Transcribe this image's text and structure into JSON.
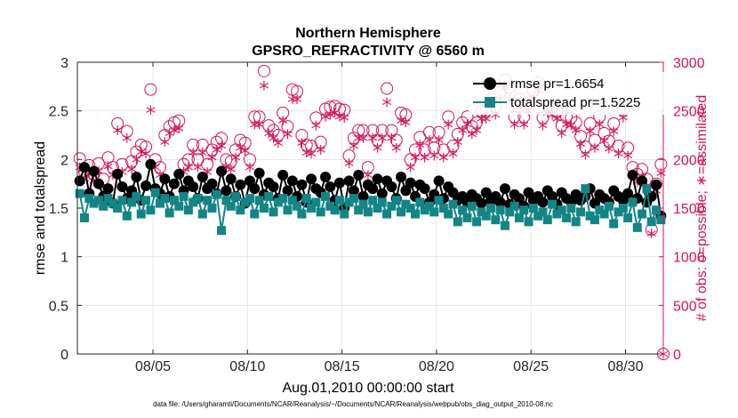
{
  "chart_data": {
    "type": "line",
    "title": "Northern Hemisphere",
    "subtitle": "GPSRO_REFRACTIVITY @ 6560 m",
    "xlabel": "Aug.01,2010 00:00:00 start",
    "ylabel_left": "rmse and totalspread",
    "ylabel_right": "# of obs: o=possible; ∗=assimilated",
    "xlim": [
      1,
      32
    ],
    "ylim_left": [
      0,
      3
    ],
    "ylim_right": [
      0,
      3000
    ],
    "x_ticks": [
      5,
      10,
      15,
      20,
      25,
      30
    ],
    "x_tick_labels": [
      "08/05",
      "08/10",
      "08/15",
      "08/20",
      "08/25",
      "08/30"
    ],
    "y_ticks_left": [
      0,
      0.5,
      1,
      1.5,
      2,
      2.5,
      3
    ],
    "y_tick_labels_left": [
      "0",
      "0.5",
      "1",
      "1.5",
      "2",
      "2.5",
      "3"
    ],
    "y_ticks_right": [
      0,
      500,
      1000,
      1500,
      2000,
      2500,
      3000
    ],
    "y_tick_labels_right": [
      "0",
      "500",
      "1000",
      "1500",
      "2000",
      "2500",
      "3000"
    ],
    "grid": true,
    "legend_position": "top-right",
    "footnote": "data file: /Users/gharamti/Documents/NCAR/Reanalysis/~/Documents/NCAR/Reanalysis/webpub/obs_diag_output_2010-08.nc",
    "colors": {
      "rmse": "#000000",
      "totalspread": "#138585",
      "obs": "#d4145a",
      "grid": "#e6e6e6",
      "frame": "#262626"
    },
    "series": [
      {
        "name": "rmse pr=1.6654",
        "axis": "left",
        "x": [
          1.125,
          1.375,
          1.625,
          1.875,
          2.125,
          2.375,
          2.625,
          2.875,
          3.125,
          3.375,
          3.625,
          3.875,
          4.125,
          4.375,
          4.625,
          4.875,
          5.125,
          5.375,
          5.625,
          5.875,
          6.125,
          6.375,
          6.625,
          6.875,
          7.125,
          7.375,
          7.625,
          7.875,
          8.125,
          8.375,
          8.625,
          8.875,
          9.125,
          9.375,
          9.625,
          9.875,
          10.125,
          10.375,
          10.625,
          10.875,
          11.125,
          11.375,
          11.625,
          11.875,
          12.125,
          12.375,
          12.625,
          12.875,
          13.125,
          13.375,
          13.625,
          13.875,
          14.125,
          14.375,
          14.625,
          14.875,
          15.125,
          15.375,
          15.625,
          15.875,
          16.125,
          16.375,
          16.625,
          16.875,
          17.125,
          17.375,
          17.625,
          17.875,
          18.125,
          18.375,
          18.625,
          18.875,
          19.125,
          19.375,
          19.625,
          19.875,
          20.125,
          20.375,
          20.625,
          20.875,
          21.125,
          21.375,
          21.625,
          21.875,
          22.125,
          22.375,
          22.625,
          22.875,
          23.125,
          23.375,
          23.625,
          23.875,
          24.125,
          24.375,
          24.625,
          24.875,
          25.125,
          25.375,
          25.625,
          25.875,
          26.125,
          26.375,
          26.625,
          26.875,
          27.125,
          27.375,
          27.625,
          27.875,
          28.125,
          28.375,
          28.625,
          28.875,
          29.125,
          29.375,
          29.625,
          29.875,
          30.125,
          30.375,
          30.625,
          30.875,
          31.125,
          31.375,
          31.625,
          31.875
        ],
        "values": [
          1.78,
          1.92,
          1.65,
          1.88,
          1.75,
          1.62,
          1.7,
          1.55,
          1.85,
          1.72,
          1.6,
          1.68,
          1.82,
          1.58,
          1.73,
          1.95,
          1.7,
          1.65,
          1.8,
          1.62,
          1.75,
          1.85,
          1.68,
          1.78,
          1.72,
          1.6,
          1.82,
          1.7,
          1.75,
          1.65,
          1.88,
          1.68,
          1.8,
          1.62,
          1.74,
          1.55,
          1.78,
          1.7,
          1.86,
          1.64,
          1.76,
          1.72,
          1.6,
          1.84,
          1.68,
          1.78,
          1.62,
          1.74,
          1.56,
          1.8,
          1.7,
          1.66,
          1.82,
          1.72,
          1.58,
          1.76,
          1.5,
          1.78,
          1.68,
          1.84,
          1.62,
          1.74,
          1.7,
          1.8,
          1.65,
          1.78,
          1.72,
          1.6,
          1.82,
          1.68,
          1.76,
          1.62,
          1.74,
          1.7,
          1.56,
          1.64,
          1.78,
          1.6,
          1.72,
          1.66,
          1.58,
          1.62,
          1.56,
          1.64,
          1.6,
          1.55,
          1.66,
          1.58,
          1.62,
          1.56,
          1.7,
          1.54,
          1.64,
          1.6,
          1.52,
          1.66,
          1.58,
          1.62,
          1.56,
          1.68,
          1.62,
          1.54,
          1.66,
          1.6,
          1.56,
          1.64,
          1.58,
          1.62,
          1.7,
          1.55,
          1.64,
          1.6,
          1.56,
          1.68,
          1.62,
          1.58,
          1.65,
          1.84,
          1.6,
          1.78,
          1.56,
          1.62,
          1.74,
          1.42
        ]
      },
      {
        "name": "totalspread pr=1.5225",
        "axis": "left",
        "x": [
          1.125,
          1.375,
          1.625,
          1.875,
          2.125,
          2.375,
          2.625,
          2.875,
          3.125,
          3.375,
          3.625,
          3.875,
          4.125,
          4.375,
          4.625,
          4.875,
          5.125,
          5.375,
          5.625,
          5.875,
          6.125,
          6.375,
          6.625,
          6.875,
          7.125,
          7.375,
          7.625,
          7.875,
          8.125,
          8.375,
          8.625,
          8.875,
          9.125,
          9.375,
          9.625,
          9.875,
          10.125,
          10.375,
          10.625,
          10.875,
          11.125,
          11.375,
          11.625,
          11.875,
          12.125,
          12.375,
          12.625,
          12.875,
          13.125,
          13.375,
          13.625,
          13.875,
          14.125,
          14.375,
          14.625,
          14.875,
          15.125,
          15.375,
          15.625,
          15.875,
          16.125,
          16.375,
          16.625,
          16.875,
          17.125,
          17.375,
          17.625,
          17.875,
          18.125,
          18.375,
          18.625,
          18.875,
          19.125,
          19.375,
          19.625,
          19.875,
          20.125,
          20.375,
          20.625,
          20.875,
          21.125,
          21.375,
          21.625,
          21.875,
          22.125,
          22.375,
          22.625,
          22.875,
          23.125,
          23.375,
          23.625,
          23.875,
          24.125,
          24.375,
          24.625,
          24.875,
          25.125,
          25.375,
          25.625,
          25.875,
          26.125,
          26.375,
          26.625,
          26.875,
          27.125,
          27.375,
          27.625,
          27.875,
          28.125,
          28.375,
          28.625,
          28.875,
          29.125,
          29.375,
          29.625,
          29.875,
          30.125,
          30.375,
          30.625,
          30.875,
          31.125,
          31.375,
          31.625,
          31.875
        ],
        "values": [
          1.65,
          1.4,
          1.6,
          1.55,
          1.58,
          1.52,
          1.6,
          1.55,
          1.5,
          1.58,
          1.42,
          1.56,
          1.62,
          1.44,
          1.58,
          1.48,
          1.66,
          1.55,
          1.6,
          1.45,
          1.58,
          1.52,
          1.62,
          1.48,
          1.56,
          1.6,
          1.44,
          1.58,
          1.5,
          1.64,
          1.27,
          1.58,
          1.52,
          1.62,
          1.48,
          1.56,
          1.6,
          1.44,
          1.58,
          1.5,
          1.62,
          1.46,
          1.56,
          1.6,
          1.48,
          1.58,
          1.52,
          1.44,
          1.6,
          1.5,
          1.56,
          1.46,
          1.62,
          1.52,
          1.48,
          1.58,
          1.44,
          1.56,
          1.6,
          1.48,
          1.54,
          1.46,
          1.58,
          1.5,
          1.56,
          1.44,
          1.52,
          1.58,
          1.46,
          1.54,
          1.5,
          1.44,
          1.56,
          1.48,
          1.52,
          1.46,
          1.58,
          1.5,
          1.44,
          1.54,
          1.36,
          1.48,
          1.4,
          1.52,
          1.36,
          1.46,
          1.42,
          1.5,
          1.38,
          1.48,
          1.32,
          1.46,
          1.52,
          1.4,
          1.48,
          1.36,
          1.5,
          1.42,
          1.46,
          1.38,
          1.54,
          1.44,
          1.48,
          1.4,
          1.5,
          1.36,
          1.46,
          1.7,
          1.42,
          1.38,
          1.48,
          1.44,
          1.52,
          1.34,
          1.46,
          1.5,
          1.4,
          1.56,
          1.3,
          1.44,
          1.7,
          1.36,
          1.48,
          1.38
        ]
      },
      {
        "name": "possible",
        "axis": "right",
        "marker": "circle",
        "x": [
          1.125,
          1.375,
          1.625,
          1.875,
          2.125,
          2.375,
          2.625,
          2.875,
          3.125,
          3.375,
          3.625,
          3.875,
          4.125,
          4.375,
          4.625,
          4.875,
          5.125,
          5.375,
          5.625,
          5.875,
          6.125,
          6.375,
          6.625,
          6.875,
          7.125,
          7.375,
          7.625,
          7.875,
          8.125,
          8.375,
          8.625,
          8.875,
          9.125,
          9.375,
          9.625,
          9.875,
          10.125,
          10.375,
          10.625,
          10.875,
          11.125,
          11.375,
          11.625,
          11.875,
          12.125,
          12.375,
          12.625,
          12.875,
          13.125,
          13.375,
          13.625,
          13.875,
          14.125,
          14.375,
          14.625,
          14.875,
          15.125,
          15.375,
          15.625,
          15.875,
          16.125,
          16.375,
          16.625,
          16.875,
          17.125,
          17.375,
          17.625,
          17.875,
          18.125,
          18.375,
          18.625,
          18.875,
          19.125,
          19.375,
          19.625,
          19.875,
          20.125,
          20.375,
          20.625,
          20.875,
          21.125,
          21.375,
          21.625,
          21.875,
          22.125,
          22.375,
          22.625,
          22.875,
          23.125,
          23.375,
          23.625,
          23.875,
          24.125,
          24.375,
          24.625,
          24.875,
          25.125,
          25.375,
          25.625,
          25.875,
          26.125,
          26.375,
          26.625,
          26.875,
          27.125,
          27.375,
          27.625,
          27.875,
          28.125,
          28.375,
          28.625,
          28.875,
          29.125,
          29.375,
          29.625,
          29.875,
          30.125,
          30.375,
          30.625,
          30.875,
          31.125,
          31.375,
          31.625,
          31.875
        ],
        "values": [
          2010,
          1880,
          1940,
          1850,
          1960,
          1800,
          2020,
          1920,
          2370,
          1950,
          2290,
          1980,
          2080,
          2150,
          2130,
          2720,
          2000,
          1920,
          2250,
          2340,
          2380,
          2400,
          1950,
          2000,
          2150,
          2000,
          2150,
          1950,
          2100,
          2180,
          2220,
          2000,
          1980,
          2100,
          2200,
          2170,
          2000,
          2440,
          2440,
          2910,
          2350,
          2300,
          2250,
          2480,
          2340,
          2720,
          2700,
          2250,
          2150,
          2140,
          2430,
          2180,
          2520,
          2540,
          2550,
          2520,
          2510,
          2040,
          2220,
          2300,
          2300,
          1920,
          2300,
          2200,
          2300,
          2730,
          2300,
          2200,
          2480,
          2460,
          2000,
          2100,
          2230,
          2100,
          2280,
          2120,
          2280,
          2100,
          2440,
          2140,
          2260,
          2380,
          2440,
          2340,
          2380,
          2500,
          2500,
          2620,
          2540,
          2690,
          2820,
          2740,
          2440,
          2620,
          2440,
          2580,
          2710,
          2790,
          2430,
          2560,
          2540,
          2500,
          2350,
          2440,
          2430,
          2380,
          2240,
          2130,
          2370,
          2200,
          2440,
          2270,
          2190,
          2370,
          2140,
          2510,
          2120,
          1920,
          1850,
          1900,
          1800,
          1280,
          1750,
          1950
        ]
      },
      {
        "name": "assimilated",
        "axis": "right",
        "marker": "asterisk",
        "x": [
          1.125,
          1.375,
          1.625,
          1.875,
          2.125,
          2.375,
          2.625,
          2.875,
          3.125,
          3.375,
          3.625,
          3.875,
          4.125,
          4.375,
          4.625,
          4.875,
          5.125,
          5.375,
          5.625,
          5.875,
          6.125,
          6.375,
          6.625,
          6.875,
          7.125,
          7.375,
          7.625,
          7.875,
          8.125,
          8.375,
          8.625,
          8.875,
          9.125,
          9.375,
          9.625,
          9.875,
          10.125,
          10.375,
          10.625,
          10.875,
          11.125,
          11.375,
          11.625,
          11.875,
          12.125,
          12.375,
          12.625,
          12.875,
          13.125,
          13.375,
          13.625,
          13.875,
          14.125,
          14.375,
          14.625,
          14.875,
          15.125,
          15.375,
          15.625,
          15.875,
          16.125,
          16.375,
          16.625,
          16.875,
          17.125,
          17.375,
          17.625,
          17.875,
          18.125,
          18.375,
          18.625,
          18.875,
          19.125,
          19.375,
          19.625,
          19.875,
          20.125,
          20.375,
          20.625,
          20.875,
          21.125,
          21.375,
          21.625,
          21.875,
          22.125,
          22.375,
          22.625,
          22.875,
          23.125,
          23.375,
          23.625,
          23.875,
          24.125,
          24.375,
          24.625,
          24.875,
          25.125,
          25.375,
          25.625,
          25.875,
          26.125,
          26.375,
          26.625,
          26.875,
          27.125,
          27.375,
          27.625,
          27.875,
          28.125,
          28.375,
          28.625,
          28.875,
          29.125,
          29.375,
          29.625,
          29.875,
          30.125,
          30.375,
          30.625,
          30.875,
          31.125,
          31.375,
          31.625,
          31.875
        ],
        "values": [
          1920,
          1800,
          1850,
          1780,
          1880,
          1720,
          1930,
          1840,
          2300,
          1870,
          2220,
          1900,
          2000,
          2080,
          2060,
          2510,
          1920,
          1840,
          2180,
          2270,
          2300,
          2320,
          1870,
          1920,
          2070,
          1920,
          2070,
          1870,
          2020,
          2100,
          2140,
          1920,
          1900,
          2020,
          2120,
          2090,
          1920,
          2360,
          2360,
          2760,
          2270,
          2220,
          2170,
          2400,
          2260,
          2620,
          2620,
          2170,
          2070,
          2060,
          2350,
          2100,
          2440,
          2460,
          2480,
          2440,
          2430,
          1960,
          2140,
          2220,
          2220,
          1840,
          2220,
          2120,
          2220,
          2590,
          2220,
          2120,
          2400,
          2380,
          1920,
          2020,
          2150,
          2020,
          2200,
          2040,
          2200,
          2020,
          2360,
          2060,
          2180,
          2300,
          2360,
          2260,
          2300,
          2420,
          2420,
          2540,
          2460,
          2620,
          2740,
          2620,
          2360,
          2540,
          2360,
          2500,
          2630,
          2710,
          2350,
          2480,
          2460,
          2420,
          2270,
          2360,
          2350,
          2300,
          2160,
          2050,
          2290,
          2120,
          2360,
          2190,
          2110,
          2290,
          2060,
          2430,
          2040,
          1840,
          1770,
          1820,
          1720,
          1240,
          1680,
          1860
        ]
      }
    ]
  }
}
